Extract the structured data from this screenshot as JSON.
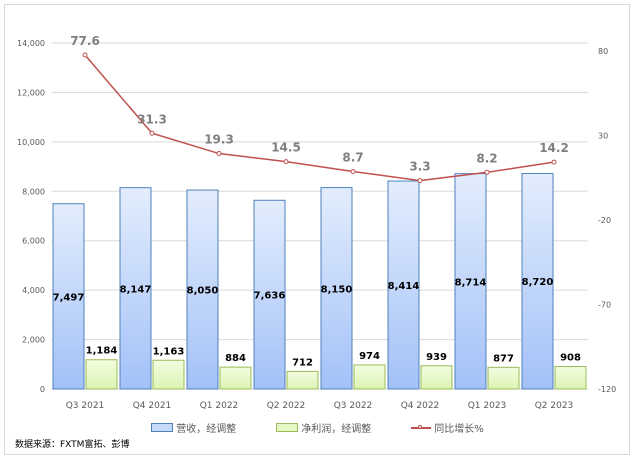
{
  "chart_data": {
    "type": "bar+line",
    "categories": [
      "Q3 2021",
      "Q4 2021",
      "Q1 2022",
      "Q2 2022",
      "Q3 2022",
      "Q4 2022",
      "Q1 2023",
      "Q2 2023"
    ],
    "series": [
      {
        "name": "营收，经调整",
        "type": "bar",
        "axis": "left",
        "color": "#a9c4f5",
        "values": [
          7497,
          8147,
          8050,
          7636,
          8150,
          8414,
          8714,
          8720
        ],
        "labels": [
          "7,497",
          "8,147",
          "8,050",
          "7,636",
          "8,150",
          "8,414",
          "8,714",
          "8,720"
        ]
      },
      {
        "name": "净利润，经调整",
        "type": "bar",
        "axis": "left",
        "color": "#e4f7c4",
        "values": [
          1184,
          1163,
          884,
          712,
          974,
          939,
          877,
          908
        ],
        "labels": [
          "1,184",
          "1,163",
          "884",
          "712",
          "974",
          "939",
          "877",
          "908"
        ]
      },
      {
        "name": "同比增长%",
        "type": "line",
        "axis": "right",
        "color": "#c0504d",
        "values": [
          77.6,
          31.3,
          19.3,
          14.5,
          8.7,
          3.3,
          8.2,
          14.2
        ],
        "labels": [
          "77.6",
          "31.3",
          "19.3",
          "14.5",
          "8.7",
          "3.3",
          "8.2",
          "14.2"
        ]
      }
    ],
    "yleft": {
      "lim": [
        0,
        14000
      ],
      "ticks": [
        "0",
        "2,000",
        "4,000",
        "6,000",
        "8,000",
        "10,000",
        "12,000",
        "14,000"
      ]
    },
    "yright": {
      "lim": [
        -120,
        84.7
      ],
      "ticks": [
        "-120",
        "-70",
        "-20",
        "30",
        "80"
      ]
    },
    "grid": true,
    "legend": "bottom"
  },
  "source": "数据来源：FXTM富拓、彭博"
}
